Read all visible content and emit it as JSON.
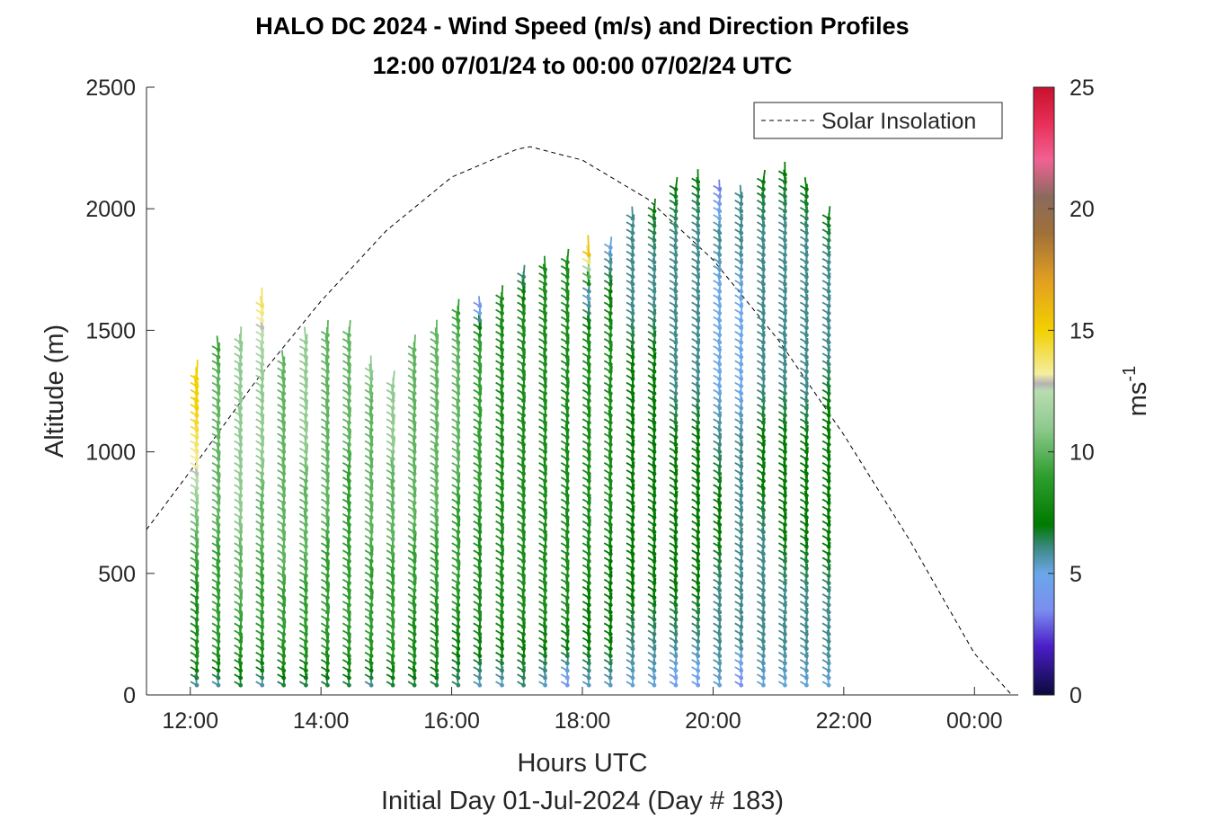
{
  "chart_data": {
    "type": "wind-barb-profile",
    "title": "HALO DC 2024 - Wind Speed (m/s) and Direction Profiles",
    "subtitle": "12:00 07/01/24 to 00:00 07/02/24  UTC",
    "xlabel": "Hours UTC",
    "xlabel2": "Initial Day 01-Jul-2024 (Day # 183)",
    "ylabel": "Altitude (m)",
    "xlim": [
      11.33,
      24.67
    ],
    "ylim": [
      0,
      2500
    ],
    "x_ticks": [
      {
        "value": 12,
        "label": "12:00"
      },
      {
        "value": 14,
        "label": "14:00"
      },
      {
        "value": 16,
        "label": "16:00"
      },
      {
        "value": 18,
        "label": "18:00"
      },
      {
        "value": 20,
        "label": "20:00"
      },
      {
        "value": 22,
        "label": "22:00"
      },
      {
        "value": 24,
        "label": "00:00"
      }
    ],
    "y_ticks": [
      0,
      500,
      1000,
      1500,
      2000,
      2500
    ],
    "colorbar": {
      "label": "ms",
      "label_exponent": "-1",
      "range": [
        0,
        25
      ],
      "ticks": [
        0,
        5,
        10,
        15,
        20,
        25
      ],
      "colors": [
        {
          "v": 0,
          "c": "#0a0a3a"
        },
        {
          "v": 2,
          "c": "#4b1ec8"
        },
        {
          "v": 3.5,
          "c": "#7b8ef0"
        },
        {
          "v": 5,
          "c": "#6aa7e8"
        },
        {
          "v": 6,
          "c": "#3f8a8a"
        },
        {
          "v": 7,
          "c": "#007a00"
        },
        {
          "v": 9,
          "c": "#2e9e2e"
        },
        {
          "v": 11,
          "c": "#8fca8f"
        },
        {
          "v": 12.5,
          "c": "#b8dcb0"
        },
        {
          "v": 12.8,
          "c": "#b3b3b3"
        },
        {
          "v": 13.2,
          "c": "#f4eda0"
        },
        {
          "v": 15,
          "c": "#f2d000"
        },
        {
          "v": 17,
          "c": "#e3a020"
        },
        {
          "v": 19,
          "c": "#a07038"
        },
        {
          "v": 20.5,
          "c": "#8a6a5e"
        },
        {
          "v": 22,
          "c": "#f06292"
        },
        {
          "v": 23.5,
          "c": "#e83058"
        },
        {
          "v": 25,
          "c": "#c8102e"
        }
      ]
    },
    "legend": {
      "entries": [
        "Solar Insolation"
      ],
      "placement": "top-right",
      "line_style": "dashed",
      "color": "#000000"
    },
    "solar_insolation": {
      "note_visible": false,
      "x": [
        11.33,
        12,
        13,
        14,
        15,
        16,
        17,
        17.2,
        18,
        19,
        20,
        21,
        22,
        23,
        24,
        24.57
      ],
      "y": [
        680,
        920,
        1290,
        1620,
        1910,
        2130,
        2245,
        2255,
        2200,
        2040,
        1790,
        1460,
        1070,
        640,
        170,
        0
      ]
    },
    "profiles": [
      {
        "t": 12.1,
        "top": 1310,
        "speed": [
          5,
          8,
          8,
          8,
          9,
          10,
          11,
          13,
          14,
          15,
          15
        ]
      },
      {
        "t": 12.43,
        "top": 1440,
        "speed": [
          5,
          8,
          9,
          9,
          9,
          10,
          10,
          10,
          10,
          10,
          9
        ]
      },
      {
        "t": 12.77,
        "top": 1450,
        "speed": [
          6,
          8,
          9,
          10,
          10,
          11,
          11,
          11,
          11,
          11,
          11
        ]
      },
      {
        "t": 13.1,
        "top": 1600,
        "speed": [
          5,
          8,
          9,
          9,
          10,
          10,
          11,
          11,
          11,
          12,
          14
        ]
      },
      {
        "t": 13.43,
        "top": 1370,
        "speed": [
          6,
          8,
          9,
          9,
          10,
          10,
          10,
          10,
          10,
          10,
          10
        ]
      },
      {
        "t": 13.77,
        "top": 1450,
        "speed": [
          6,
          8,
          9,
          9,
          10,
          10,
          10,
          11,
          11,
          11,
          11
        ]
      },
      {
        "t": 14.1,
        "top": 1480,
        "speed": [
          6,
          8,
          9,
          9,
          9,
          10,
          10,
          10,
          10,
          10,
          10
        ]
      },
      {
        "t": 14.43,
        "top": 1500,
        "speed": [
          6,
          8,
          9,
          9,
          9,
          9,
          9,
          10,
          10,
          10,
          10
        ]
      },
      {
        "t": 14.77,
        "top": 1330,
        "speed": [
          5,
          8,
          9,
          9,
          9,
          10,
          10,
          10,
          10,
          10,
          11
        ]
      },
      {
        "t": 15.1,
        "top": 1280,
        "speed": [
          6,
          8,
          9,
          9,
          9,
          10,
          10,
          10,
          11,
          11,
          11
        ]
      },
      {
        "t": 15.43,
        "top": 1440,
        "speed": [
          6,
          8,
          8,
          9,
          9,
          10,
          10,
          10,
          10,
          10,
          10
        ]
      },
      {
        "t": 15.77,
        "top": 1500,
        "speed": [
          6,
          8,
          8,
          9,
          9,
          10,
          10,
          10,
          10,
          10,
          10
        ]
      },
      {
        "t": 16.1,
        "top": 1570,
        "speed": [
          6,
          7,
          8,
          9,
          9,
          9,
          10,
          10,
          10,
          10,
          9
        ]
      },
      {
        "t": 16.43,
        "top": 1620,
        "speed": [
          5,
          7,
          8,
          8,
          8,
          9,
          9,
          9,
          9,
          9,
          3
        ]
      },
      {
        "t": 16.77,
        "top": 1650,
        "speed": [
          5,
          7,
          8,
          8,
          8,
          8,
          8,
          8,
          8,
          8,
          8
        ]
      },
      {
        "t": 17.1,
        "top": 1740,
        "speed": [
          6,
          7,
          8,
          8,
          8,
          8,
          8,
          8,
          8,
          8,
          6
        ]
      },
      {
        "t": 17.43,
        "top": 1760,
        "speed": [
          5,
          7,
          8,
          8,
          8,
          8,
          8,
          8,
          8,
          8,
          8
        ]
      },
      {
        "t": 17.77,
        "top": 1790,
        "speed": [
          3,
          7,
          8,
          8,
          8,
          8,
          8,
          8,
          8,
          8,
          8
        ]
      },
      {
        "t": 18.1,
        "top": 1830,
        "speed": [
          5,
          7,
          7,
          8,
          8,
          8,
          8,
          8,
          8,
          5,
          17
        ]
      },
      {
        "t": 18.43,
        "top": 1850,
        "speed": [
          5,
          7,
          7,
          7,
          8,
          8,
          8,
          8,
          8,
          7,
          5
        ]
      },
      {
        "t": 18.77,
        "top": 1960,
        "speed": [
          5,
          6,
          7,
          7,
          7,
          7,
          7,
          7,
          6,
          6,
          6
        ]
      },
      {
        "t": 19.1,
        "top": 2000,
        "speed": [
          5,
          6,
          7,
          7,
          7,
          7,
          7,
          7,
          6,
          6,
          7
        ]
      },
      {
        "t": 19.43,
        "top": 2090,
        "speed": [
          4,
          6,
          7,
          7,
          7,
          7,
          6,
          6,
          6,
          6,
          7
        ]
      },
      {
        "t": 19.77,
        "top": 2130,
        "speed": [
          4,
          6,
          7,
          7,
          7,
          7,
          6,
          6,
          6,
          6,
          7
        ]
      },
      {
        "t": 20.1,
        "top": 2100,
        "speed": [
          5,
          6,
          6,
          7,
          7,
          6,
          5,
          5,
          5,
          6,
          3
        ]
      },
      {
        "t": 20.43,
        "top": 2060,
        "speed": [
          3,
          6,
          6,
          6,
          6,
          6,
          5,
          5,
          5,
          6,
          6
        ]
      },
      {
        "t": 20.77,
        "top": 2120,
        "speed": [
          5,
          6,
          6,
          6,
          7,
          7,
          6,
          6,
          6,
          6,
          7
        ]
      },
      {
        "t": 21.1,
        "top": 2140,
        "speed": [
          5,
          6,
          6,
          7,
          7,
          7,
          6,
          6,
          6,
          6,
          7
        ]
      },
      {
        "t": 21.43,
        "top": 2080,
        "speed": [
          5,
          6,
          6,
          7,
          7,
          7,
          6,
          6,
          6,
          6,
          7
        ]
      },
      {
        "t": 21.77,
        "top": 1980,
        "speed": [
          5,
          6,
          6,
          7,
          7,
          7,
          7,
          6,
          6,
          6,
          7
        ]
      }
    ]
  }
}
